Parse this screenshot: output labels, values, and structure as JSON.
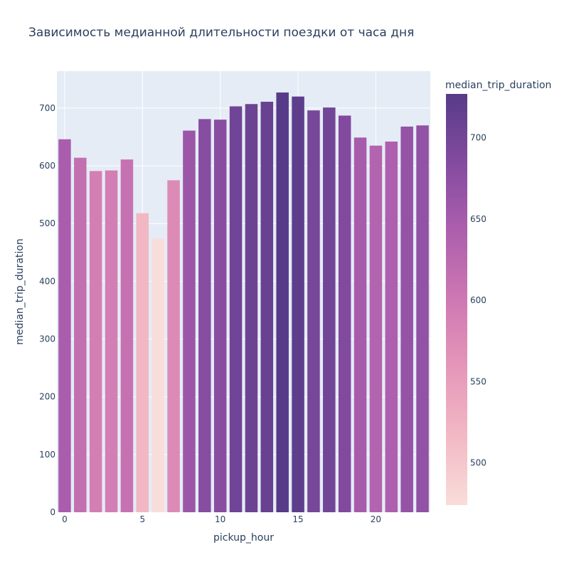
{
  "chart_data": {
    "type": "bar",
    "title": "Зависимость медианной длительности поездки от часа дня",
    "xlabel": "pickup_hour",
    "ylabel": "median_trip_duration",
    "x": [
      0,
      1,
      2,
      3,
      4,
      5,
      6,
      7,
      8,
      9,
      10,
      11,
      12,
      13,
      14,
      15,
      16,
      17,
      18,
      19,
      20,
      21,
      22,
      23
    ],
    "values": [
      646,
      614,
      591,
      592,
      611,
      518,
      474,
      575,
      661,
      681,
      680,
      703,
      707,
      711,
      727,
      720,
      696,
      701,
      687,
      649,
      635,
      642,
      668,
      670
    ],
    "xlim": [
      -0.5,
      23.5
    ],
    "ylim": [
      0,
      764
    ],
    "x_ticks": [
      "0",
      "5",
      "10",
      "15",
      "20"
    ],
    "y_ticks": [
      "0",
      "100",
      "200",
      "300",
      "400",
      "500",
      "600",
      "700"
    ],
    "colorbar": {
      "title": "median_trip_duration",
      "range": [
        474,
        727
      ],
      "ticks": [
        "500",
        "550",
        "600",
        "650",
        "700"
      ],
      "colorscale": [
        "#f9ddda",
        "#f2b9c4",
        "#e597b9",
        "#ce78b3",
        "#ad5fad",
        "#834ba0",
        "#573b88"
      ]
    },
    "grid": true,
    "plot_background": "#e5ecf6"
  }
}
